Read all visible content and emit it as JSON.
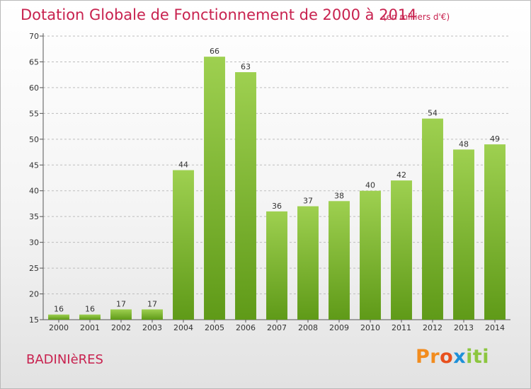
{
  "chart_data": {
    "type": "bar",
    "title": "Dotation Globale de Fonctionnement de 2000 à 2014",
    "subtitle": "(en milliers d'€)",
    "xlabel": "",
    "ylabel": "",
    "categories": [
      "2000",
      "2001",
      "2002",
      "2003",
      "2004",
      "2005",
      "2006",
      "2007",
      "2008",
      "2009",
      "2010",
      "2011",
      "2012",
      "2013",
      "2014"
    ],
    "values": [
      16,
      16,
      17,
      17,
      44,
      66,
      63,
      36,
      37,
      38,
      40,
      42,
      54,
      48,
      49
    ],
    "data_labels": [
      "16",
      "16",
      "17",
      "17",
      "44",
      "66",
      "63",
      "36",
      "37",
      "38",
      "40",
      "42",
      "54",
      "48",
      "49"
    ],
    "ylim": [
      15,
      70
    ],
    "yticks": [
      15,
      20,
      25,
      30,
      35,
      40,
      45,
      50,
      55,
      60,
      65,
      70
    ],
    "ytick_labels": [
      "15",
      "20",
      "25",
      "30",
      "35",
      "40",
      "45",
      "50",
      "55",
      "60",
      "65",
      "70"
    ],
    "grid": true,
    "legend": "none",
    "colors": {
      "bar_top": "#9ed050",
      "bar_bottom": "#5f9a18",
      "title": "#c8224f"
    }
  },
  "footer": {
    "commune": "BADINIèRES",
    "brand_letters": [
      "P",
      "r",
      "o",
      "x",
      "i",
      "t",
      "i"
    ],
    "brand_colors": [
      "#f28c1e",
      "#f28c1e",
      "#e8501e",
      "#1e90d8",
      "#8cc63f",
      "#8cc63f",
      "#8cc63f"
    ]
  }
}
